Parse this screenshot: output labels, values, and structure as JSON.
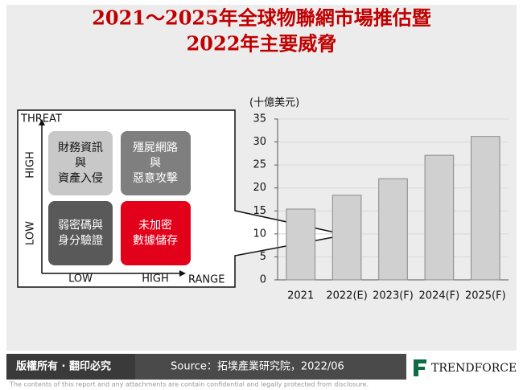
{
  "chart_data": {
    "type": "bar",
    "title": [
      "2021～2025年全球物聯網市場推估暨",
      "2022年主要威脅"
    ],
    "y_unit": "(十億美元)",
    "categories": [
      "2021",
      "2022(E)",
      "2023(F)",
      "2024(F)",
      "2025(F)"
    ],
    "values": [
      15.4,
      18.4,
      22,
      27.1,
      31.2
    ],
    "color": "#d0d0d0",
    "ylim": [
      0,
      35
    ],
    "yticks": [
      0,
      5,
      10,
      15,
      20,
      25,
      30,
      35
    ],
    "grid": true
  },
  "matrix": {
    "y_axis_label": "THREAT",
    "x_axis_label": "RANGE",
    "y_levels": [
      "HIGH",
      "LOW"
    ],
    "x_levels": [
      "LOW",
      "HIGH"
    ],
    "cells": [
      [
        "財務資訊",
        "與",
        "資產入侵"
      ],
      [
        "殭屍網路",
        "與",
        "惡意攻擊"
      ],
      [
        "弱密碼與",
        "身分驗證"
      ],
      [
        "未加密",
        "數據儲存"
      ]
    ]
  },
  "footer": {
    "copyright": "版權所有 · 翻印必究",
    "source": "Source：拓墣產業研究院，2022/06",
    "brand": "TRENDFORCE",
    "disclaimer": "The contents of this report and any attachments are contain confidential and legally protected from disclosure."
  }
}
